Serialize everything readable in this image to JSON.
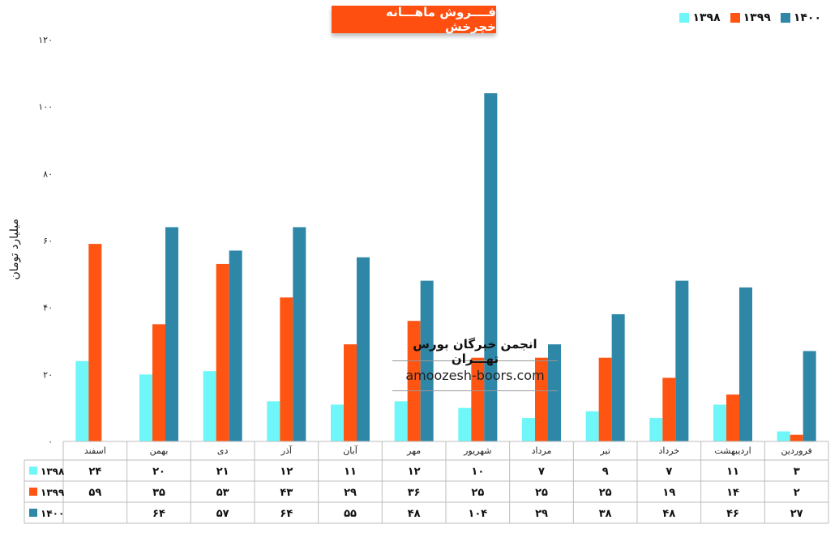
{
  "chart_data": {
    "type": "bar",
    "title": "فــــروش ماهـــانه خچرخش",
    "ylabel": "میلیارد تومان",
    "ylim": [
      0,
      120
    ],
    "yticks": [
      "۰",
      "۲۰",
      "۴۰",
      "۶۰",
      "۸۰",
      "۱۰۰",
      "۱۲۰"
    ],
    "ytick_values": [
      0,
      20,
      40,
      60,
      80,
      100,
      120
    ],
    "categories": [
      "فروردین",
      "اردیبهشت",
      "خرداد",
      "تیر",
      "مرداد",
      "شهریور",
      "مهر",
      "آبان",
      "آذر",
      "دی",
      "بهمن",
      "اسفند"
    ],
    "series": [
      {
        "name": "۱۳۹۸",
        "color": "#6ff6f8",
        "values": [
          3,
          11,
          7,
          9,
          7,
          10,
          12,
          11,
          12,
          21,
          20,
          24
        ],
        "labels": [
          "۳",
          "۱۱",
          "۷",
          "۹",
          "۷",
          "۱۰",
          "۱۲",
          "۱۱",
          "۱۲",
          "۲۱",
          "۲۰",
          "۲۴"
        ]
      },
      {
        "name": "۱۳۹۹",
        "color": "#ff5412",
        "values": [
          2,
          14,
          19,
          25,
          25,
          25,
          36,
          29,
          43,
          53,
          35,
          59
        ],
        "labels": [
          "۲",
          "۱۴",
          "۱۹",
          "۲۵",
          "۲۵",
          "۲۵",
          "۳۶",
          "۲۹",
          "۴۳",
          "۵۳",
          "۳۵",
          "۵۹"
        ]
      },
      {
        "name": "۱۴۰۰",
        "color": "#2e87a6",
        "values": [
          27,
          46,
          48,
          38,
          29,
          104,
          48,
          55,
          64,
          57,
          64,
          null
        ],
        "labels": [
          "۲۷",
          "۴۶",
          "۴۸",
          "۳۸",
          "۲۹",
          "۱۰۴",
          "۴۸",
          "۵۵",
          "۶۴",
          "۵۷",
          "۶۴",
          ""
        ]
      }
    ],
    "legend_position": "top-right",
    "grid": false,
    "data_table": true
  },
  "watermark": {
    "title": "انجمن خبرگان بورس تهـــران",
    "url": "amoozesh-boors.com"
  }
}
